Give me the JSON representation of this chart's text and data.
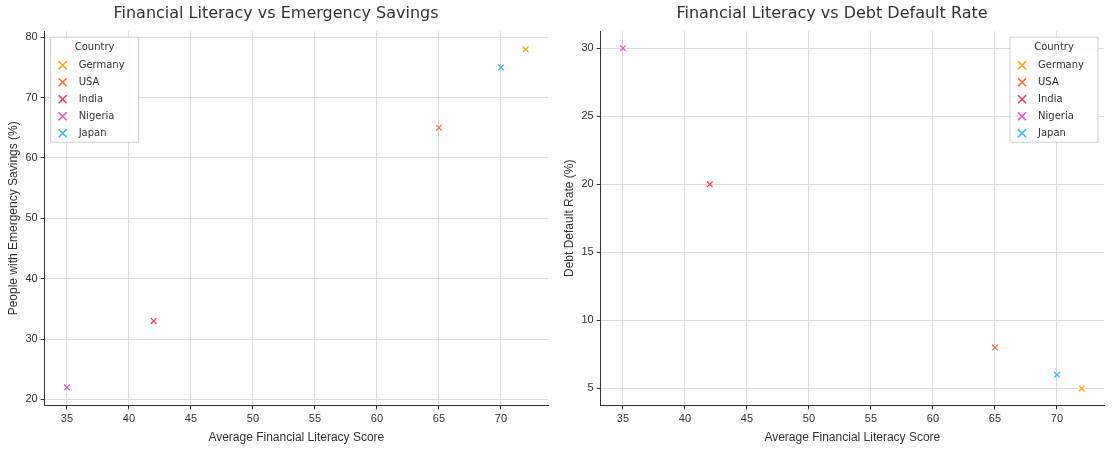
{
  "chart_data": [
    {
      "type": "scatter",
      "title": "Financial Literacy vs Emergency Savings",
      "xlabel": "Average Financial Literacy Score",
      "ylabel": "People with Emergency Savings (%)",
      "legend_title": "Country",
      "legend": "top left",
      "marker": "cross",
      "grid": true,
      "xlim": [
        33.2,
        73.8
      ],
      "xticks": [
        35,
        40,
        45,
        50,
        55,
        60,
        65,
        70
      ],
      "ylim": [
        19,
        81
      ],
      "yticks": [
        20,
        30,
        40,
        50,
        60,
        70,
        80
      ],
      "series": [
        {
          "name": "Germany",
          "color": "#ffa500",
          "x": [
            72
          ],
          "values": [
            78
          ]
        },
        {
          "name": "USA",
          "color": "#ff6a33",
          "x": [
            65
          ],
          "values": [
            65
          ]
        },
        {
          "name": "India",
          "color": "#f03a5f",
          "x": [
            42
          ],
          "values": [
            33
          ]
        },
        {
          "name": "Nigeria",
          "color": "#f54fc4",
          "x": [
            35
          ],
          "values": [
            22
          ]
        },
        {
          "name": "Japan",
          "color": "#33bbee",
          "x": [
            70
          ],
          "values": [
            75
          ]
        }
      ]
    },
    {
      "type": "scatter",
      "title": "Financial Literacy vs Debt Default Rate",
      "xlabel": "Average Financial Literacy Score",
      "ylabel": "Debt Default Rate (%)",
      "legend_title": "Country",
      "legend": "top right",
      "marker": "cross",
      "grid": true,
      "xlim": [
        33.2,
        73.8
      ],
      "xticks": [
        35,
        40,
        45,
        50,
        55,
        60,
        65,
        70
      ],
      "ylim": [
        3.75,
        31.25
      ],
      "yticks": [
        5,
        10,
        15,
        20,
        25,
        30
      ],
      "series": [
        {
          "name": "Germany",
          "color": "#ffa500",
          "x": [
            72
          ],
          "values": [
            5
          ]
        },
        {
          "name": "USA",
          "color": "#ff6a33",
          "x": [
            65
          ],
          "values": [
            8
          ]
        },
        {
          "name": "India",
          "color": "#f03a5f",
          "x": [
            42
          ],
          "values": [
            20
          ]
        },
        {
          "name": "Nigeria",
          "color": "#f54fc4",
          "x": [
            35
          ],
          "values": [
            30
          ]
        },
        {
          "name": "Japan",
          "color": "#33bbee",
          "x": [
            70
          ],
          "values": [
            6
          ]
        }
      ]
    }
  ]
}
